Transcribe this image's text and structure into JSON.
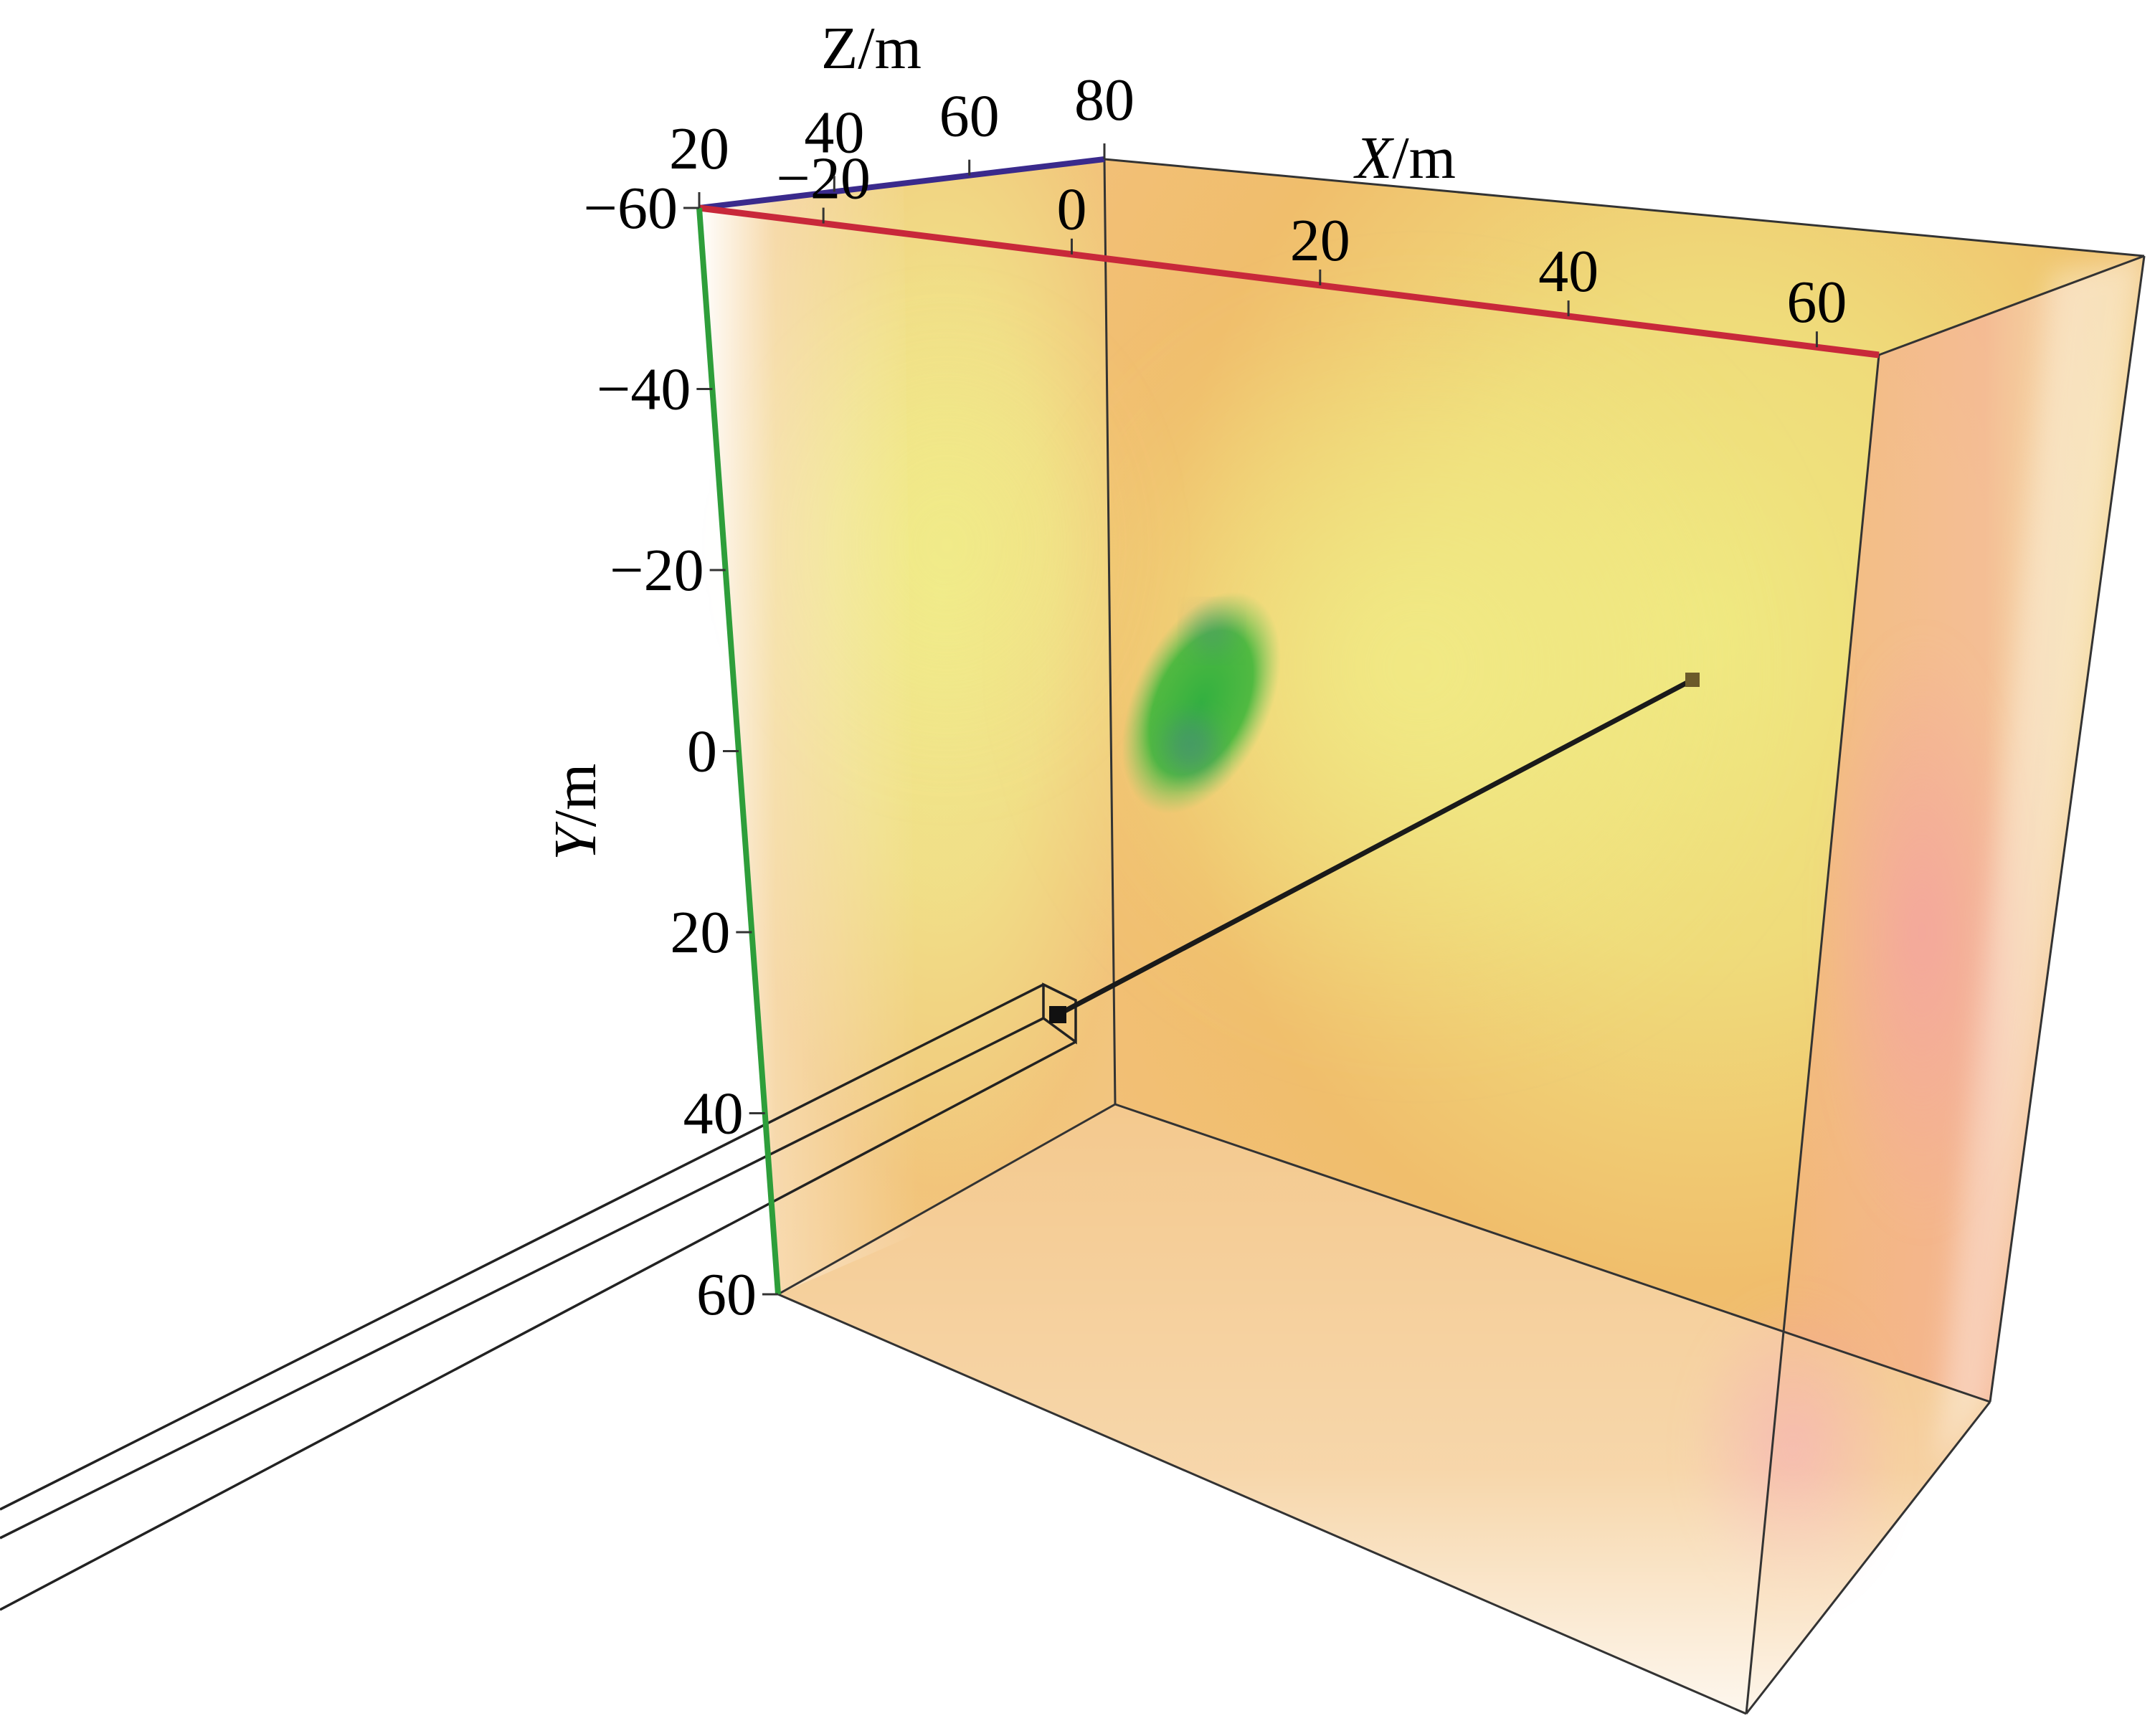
{
  "chart_data": {
    "type": "3d-volume",
    "axes": {
      "x": {
        "label_italic": "X",
        "label_unit": "/m",
        "ticks": [
          {
            "label": "−20",
            "value": -20
          },
          {
            "label": "0",
            "value": 0
          },
          {
            "label": "20",
            "value": 20
          },
          {
            "label": "40",
            "value": 40
          },
          {
            "label": "60",
            "value": 60
          }
        ],
        "range": [
          -30,
          65
        ],
        "color": "#c8283a"
      },
      "y": {
        "label_italic": "Y",
        "label_unit": "/m",
        "ticks": [
          {
            "label": "−60",
            "value": -60
          },
          {
            "label": "−40",
            "value": -40
          },
          {
            "label": "−20",
            "value": -20
          },
          {
            "label": "0",
            "value": 0
          },
          {
            "label": "20",
            "value": 20
          },
          {
            "label": "40",
            "value": 40
          },
          {
            "label": "60",
            "value": 60
          }
        ],
        "range": [
          -60,
          60
        ],
        "color": "#2e9e3a"
      },
      "z": {
        "label_italic": "",
        "label_unit": "Z/m",
        "ticks": [
          {
            "label": "20",
            "value": 20
          },
          {
            "label": "40",
            "value": 40
          },
          {
            "label": "60",
            "value": 60
          },
          {
            "label": "80",
            "value": 80
          }
        ],
        "range": [
          20,
          80
        ],
        "color": "#3a2a8c"
      }
    },
    "anomaly": {
      "center": {
        "x": 0,
        "y": -10,
        "z": 50
      },
      "color": "#3fb53a"
    },
    "borehole": {
      "start": {
        "x": -12,
        "y": 24
      },
      "end": {
        "x": 48,
        "y": -12
      },
      "color": "#1a1a1a"
    },
    "volume_colors": {
      "low": "#f3e882",
      "mid": "#f0c46a",
      "high": "#f3a4a0"
    }
  }
}
